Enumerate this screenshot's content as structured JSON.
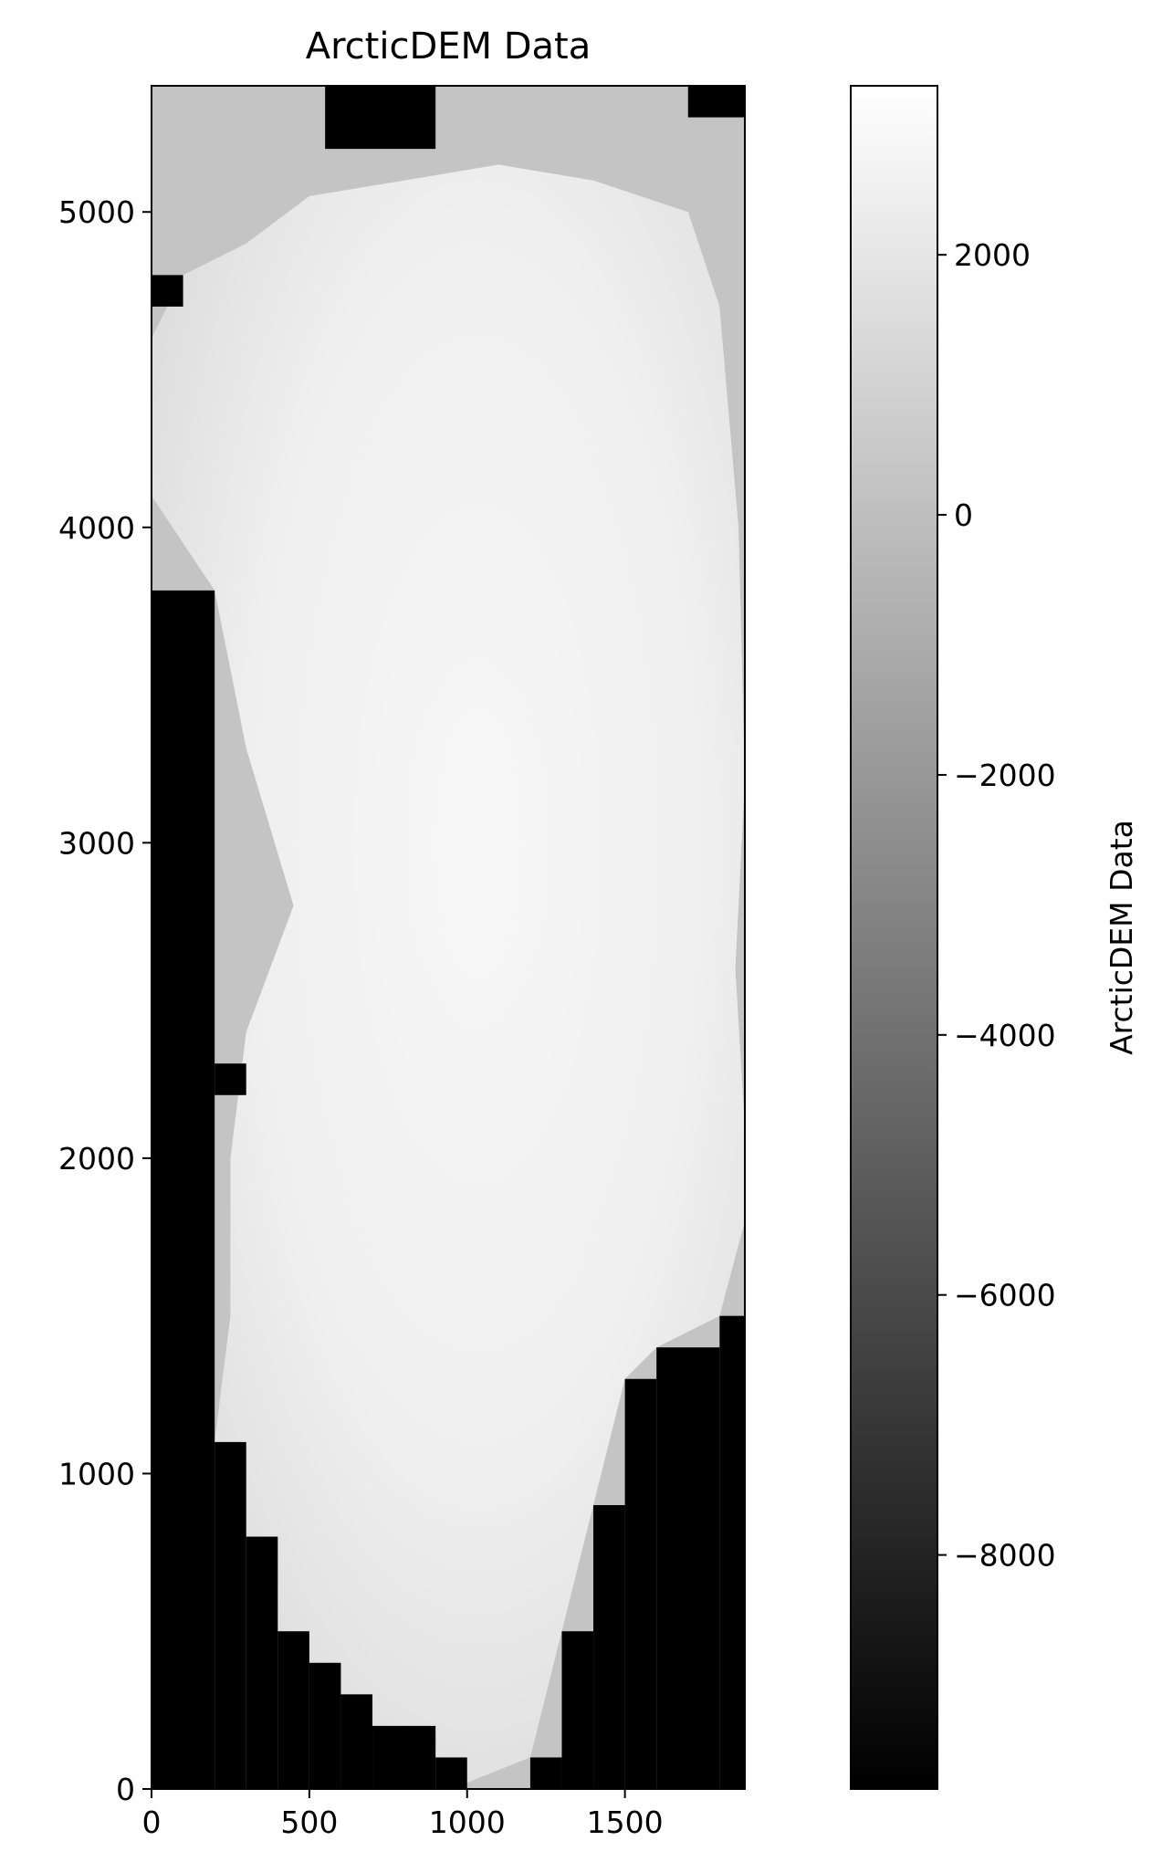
{
  "chart_data": {
    "type": "heatmap",
    "title": "ArcticDEM Data",
    "xlabel": "",
    "ylabel": "",
    "xlim": [
      0,
      1880
    ],
    "ylim": [
      0,
      5400
    ],
    "x_ticks": [
      0,
      500,
      1000,
      1500
    ],
    "y_ticks": [
      0,
      1000,
      2000,
      3000,
      4000,
      5000
    ],
    "colormap": "gray",
    "colorbar": {
      "label": "ArcticDEM Data",
      "range": [
        -9800,
        3300
      ],
      "ticks": [
        2000,
        0,
        -2000,
        -4000,
        -6000,
        -8000
      ],
      "tick_labels": [
        "2000",
        "0",
        "−2000",
        "−4000",
        "−6000",
        "−8000"
      ]
    },
    "nodata_blocks_note": "black = no data (minimum value); grey = land/coast (~0); white = ice sheet interior (~2000-3000)",
    "nodata_regions": [
      {
        "x": [
          0,
          200
        ],
        "y": [
          0,
          3800
        ]
      },
      {
        "x": [
          200,
          300
        ],
        "y": [
          2200,
          2300
        ]
      },
      {
        "x": [
          200,
          300
        ],
        "y": [
          0,
          1100
        ]
      },
      {
        "x": [
          300,
          400
        ],
        "y": [
          0,
          800
        ]
      },
      {
        "x": [
          400,
          500
        ],
        "y": [
          0,
          500
        ]
      },
      {
        "x": [
          500,
          600
        ],
        "y": [
          0,
          400
        ]
      },
      {
        "x": [
          600,
          700
        ],
        "y": [
          0,
          300
        ]
      },
      {
        "x": [
          700,
          900
        ],
        "y": [
          0,
          200
        ]
      },
      {
        "x": [
          900,
          1000
        ],
        "y": [
          0,
          100
        ]
      },
      {
        "x": [
          1200,
          1300
        ],
        "y": [
          0,
          100
        ]
      },
      {
        "x": [
          1300,
          1400
        ],
        "y": [
          0,
          500
        ]
      },
      {
        "x": [
          1400,
          1500
        ],
        "y": [
          0,
          900
        ]
      },
      {
        "x": [
          1500,
          1600
        ],
        "y": [
          0,
          1300
        ]
      },
      {
        "x": [
          1600,
          1800
        ],
        "y": [
          0,
          1400
        ]
      },
      {
        "x": [
          1800,
          1880
        ],
        "y": [
          0,
          1500
        ]
      },
      {
        "x": [
          0,
          100
        ],
        "y": [
          4700,
          4800
        ]
      },
      {
        "x": [
          550,
          900
        ],
        "y": [
          5200,
          5400
        ]
      },
      {
        "x": [
          900,
          900
        ],
        "y": [
          5300,
          5400
        ]
      },
      {
        "x": [
          1700,
          1880
        ],
        "y": [
          5300,
          5400
        ]
      }
    ],
    "ice_sheet_outline": [
      [
        200,
        1100
      ],
      [
        300,
        800
      ],
      [
        400,
        500
      ],
      [
        500,
        400
      ],
      [
        600,
        300
      ],
      [
        700,
        200
      ],
      [
        900,
        100
      ],
      [
        1000,
        20
      ],
      [
        1200,
        100
      ],
      [
        1300,
        500
      ],
      [
        1400,
        900
      ],
      [
        1500,
        1300
      ],
      [
        1600,
        1400
      ],
      [
        1800,
        1500
      ],
      [
        1880,
        1800
      ],
      [
        1880,
        2100
      ],
      [
        1850,
        2600
      ],
      [
        1880,
        3200
      ],
      [
        1860,
        4000
      ],
      [
        1800,
        4700
      ],
      [
        1700,
        5000
      ],
      [
        1400,
        5100
      ],
      [
        1100,
        5150
      ],
      [
        800,
        5100
      ],
      [
        500,
        5050
      ],
      [
        300,
        4900
      ],
      [
        100,
        4800
      ],
      [
        0,
        4600
      ],
      [
        0,
        4100
      ],
      [
        200,
        3800
      ],
      [
        300,
        3300
      ],
      [
        450,
        2800
      ],
      [
        300,
        2400
      ],
      [
        250,
        2000
      ],
      [
        250,
        1500
      ]
    ]
  }
}
